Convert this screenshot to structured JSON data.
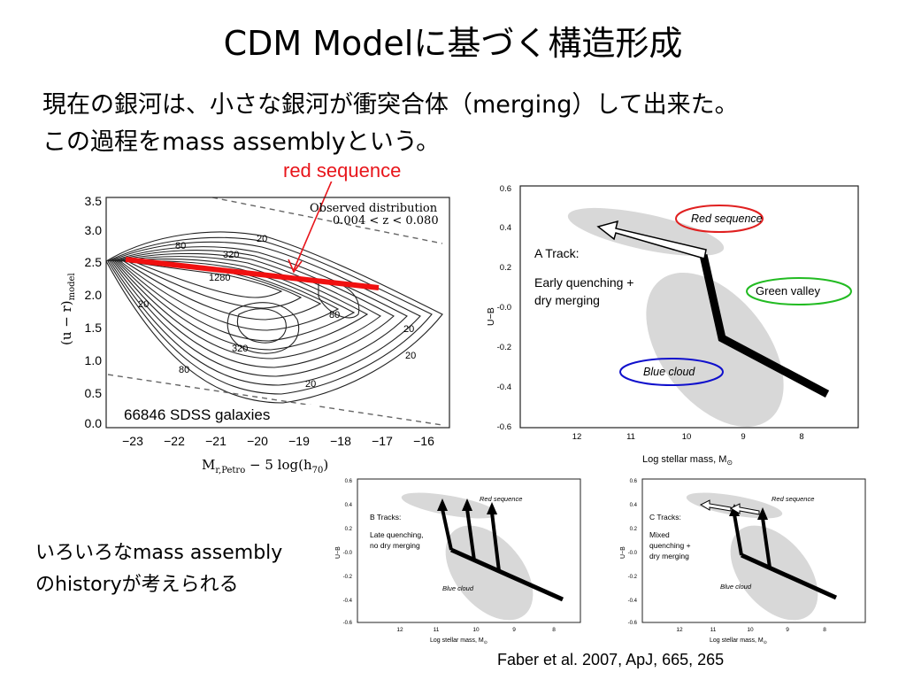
{
  "slide": {
    "title": "CDM Modelに基づく構造形成",
    "subtitle_line1": "現在の銀河は、小さな銀河が衝突合体（merging）して出来た。",
    "subtitle_line2": "この過程をmass assemblyという。",
    "red_sequence_label": "red sequence",
    "caption_line1": "いろいろなmass assembly",
    "caption_line2": "のhistoryが考えられる",
    "citation": "Faber et al.  2007,  ApJ, 665,  265"
  },
  "sdss_plot": {
    "legend_line1": "Observed distribution",
    "legend_line2": "0.004 < z < 0.080",
    "galaxies_label": "66846 SDSS galaxies",
    "x_axis_label": "M",
    "x_axis_sub": "r,Petro",
    "x_axis_rest": " − 5 log(h",
    "x_axis_sub2": "70",
    "x_axis_close": ")",
    "y_axis_label": "(u − r)",
    "y_axis_sub": "model",
    "x_ticks": [
      "−23",
      "−22",
      "−21",
      "−20",
      "−19",
      "−18",
      "−17",
      "−16"
    ],
    "y_ticks": [
      "3.5",
      "3.0",
      "2.5",
      "2.0",
      "1.5",
      "1.0",
      "0.5",
      "0.0"
    ],
    "contour_labels": [
      "80",
      "20",
      "320",
      "1280",
      "20",
      "80",
      "320",
      "20",
      "80",
      "20",
      "20"
    ]
  },
  "faber_main": {
    "track_title": "A Track:",
    "track_desc1": "Early quenching +",
    "track_desc2": "dry merging",
    "red_sequence": "Red sequence",
    "green_valley": "Green valley",
    "blue_cloud": "Blue cloud",
    "y_axis_label": "U−B",
    "x_axis_label": "Log stellar mass, M",
    "x_axis_sub": "⊙",
    "y_ticks": [
      "0.6",
      "0.4",
      "0.2",
      "-0.0",
      "-0.2",
      "-0.4",
      "-0.6"
    ],
    "x_ticks": [
      "12",
      "11",
      "10",
      "9",
      "8"
    ]
  },
  "faber_b": {
    "track_title": "B Tracks:",
    "track_desc1": "Late quenching,",
    "track_desc2": "no dry merging",
    "red_sequence": "Red sequence",
    "blue_cloud": "Blue cloud",
    "y_axis_label": "U−B",
    "x_axis_label": "Log stellar mass, M",
    "x_axis_sub": "⊙",
    "y_ticks": [
      "0.6",
      "0.4",
      "0.2",
      "-0.0",
      "-0.2",
      "-0.4",
      "-0.6"
    ],
    "x_ticks": [
      "12",
      "11",
      "10",
      "9",
      "8"
    ]
  },
  "faber_c": {
    "track_title": "C Tracks:",
    "track_desc1": "Mixed",
    "track_desc2": "quenching +",
    "track_desc3": "dry merging",
    "red_sequence": "Red sequence",
    "blue_cloud": "Blue cloud",
    "y_axis_label": "U−B",
    "x_axis_label": "Log stellar mass, M",
    "x_axis_sub": "⊙",
    "y_ticks": [
      "0.6",
      "0.4",
      "0.2",
      "-0.0",
      "-0.2",
      "-0.4",
      "-0.6"
    ],
    "x_ticks": [
      "12",
      "11",
      "10",
      "9",
      "8"
    ]
  },
  "colors": {
    "red_line": "#f01010",
    "red_ring": "#e02020",
    "green_ring": "#22bb22",
    "blue_ring": "#1010cc",
    "ellipse_fill": "#d8d8d8"
  }
}
